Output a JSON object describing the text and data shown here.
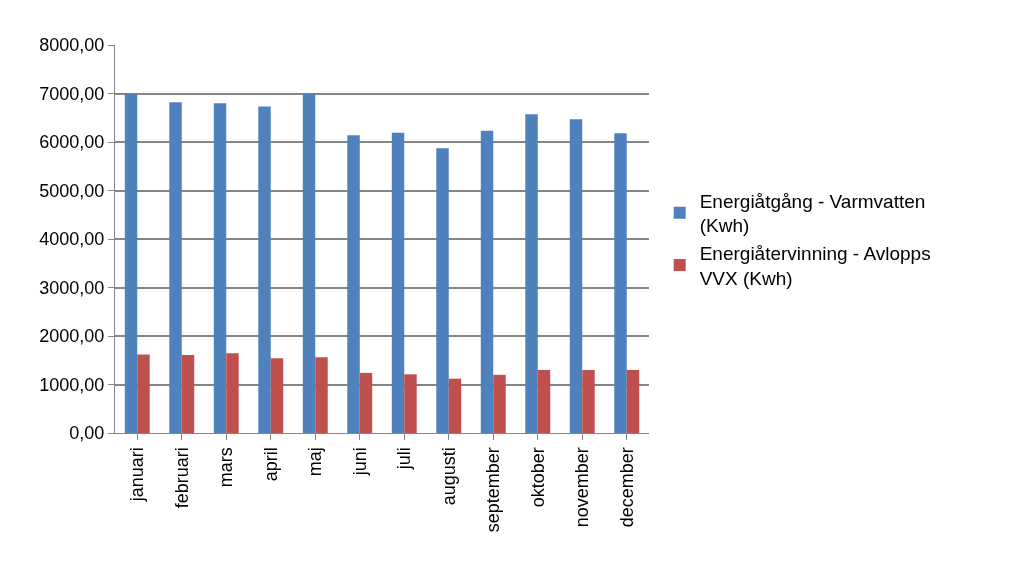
{
  "chart_data": {
    "type": "bar",
    "categories": [
      "januari",
      "februari",
      "mars",
      "april",
      "maj",
      "juni",
      "juli",
      "augusti",
      "september",
      "oktober",
      "november",
      "december"
    ],
    "series": [
      {
        "name": "Energiåtgång - Varmvatten (Kwh)",
        "color": "#4f81bd",
        "values": [
          7000,
          6820,
          6800,
          6730,
          7000,
          6140,
          6190,
          5870,
          6230,
          6570,
          6470,
          6180
        ]
      },
      {
        "name": "Energiåtervinning - Avlopps VVX (Kwh)",
        "color": "#c0504d",
        "values": [
          1620,
          1610,
          1645,
          1540,
          1560,
          1240,
          1210,
          1120,
          1200,
          1300,
          1300,
          1300
        ]
      }
    ],
    "ylim": [
      0,
      8000
    ],
    "yticks": [
      {
        "value": 0,
        "label": "0,00"
      },
      {
        "value": 1000,
        "label": "1000,00"
      },
      {
        "value": 2000,
        "label": "2000,00"
      },
      {
        "value": 3000,
        "label": "3000,00"
      },
      {
        "value": 4000,
        "label": "4000,00"
      },
      {
        "value": 5000,
        "label": "5000,00"
      },
      {
        "value": 6000,
        "label": "6000,00"
      },
      {
        "value": 7000,
        "label": "7000,00"
      },
      {
        "value": 8000,
        "label": "8000,00"
      }
    ],
    "grid": "y",
    "legend": "right"
  }
}
